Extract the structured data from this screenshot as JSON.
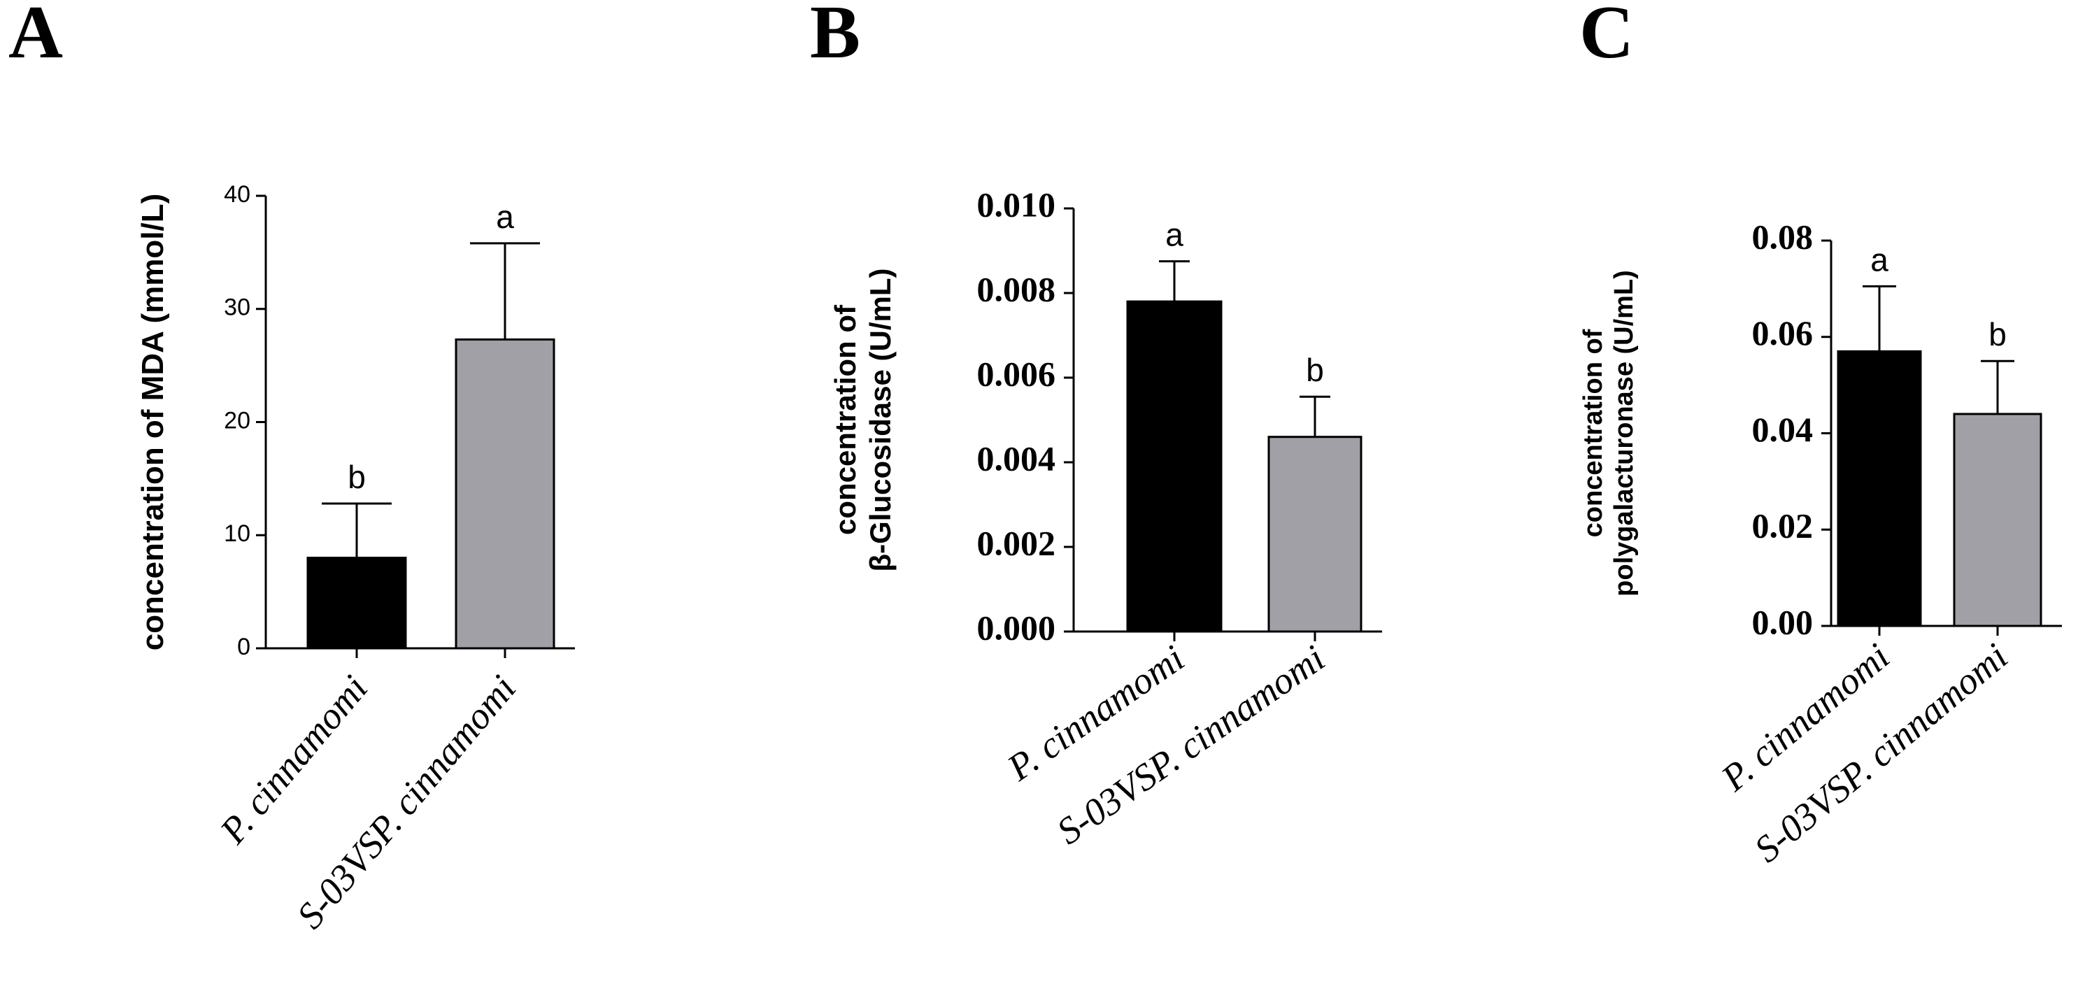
{
  "chart_data": [
    {
      "panel_label": "A",
      "type": "bar",
      "ylabel": "concentration of MDA (mmol/L)",
      "ylim": [
        0,
        40
      ],
      "ytick_labels": [
        "0",
        "10",
        "20",
        "30",
        "40"
      ],
      "ytick_values": [
        0,
        10,
        20,
        30,
        40
      ],
      "categories": [
        "P. cinnamomi",
        "S-03VSP. cinnamomi"
      ],
      "values": [
        8.0,
        27.3
      ],
      "errors": [
        4.8,
        8.5
      ],
      "significance": [
        "b",
        "a"
      ],
      "colors": [
        "#000000",
        "#a0a0a6"
      ]
    },
    {
      "panel_label": "B",
      "type": "bar",
      "ylabel": "concentration of β-Glucosidase (U/mL)",
      "ylabel_lines": [
        "concentration of",
        "β-Glucosidase (U/mL)"
      ],
      "ylim": [
        0,
        0.01
      ],
      "ytick_labels": [
        "0.000",
        "0.002",
        "0.004",
        "0.006",
        "0.008",
        "0.010"
      ],
      "ytick_values": [
        0,
        0.002,
        0.004,
        0.006,
        0.008,
        0.01
      ],
      "categories": [
        "P. cinnamomi",
        "S-03VSP. cinnamomi"
      ],
      "values": [
        0.0078,
        0.0046
      ],
      "errors": [
        0.00095,
        0.00095
      ],
      "significance": [
        "a",
        "b"
      ],
      "colors": [
        "#000000",
        "#a0a0a6"
      ]
    },
    {
      "panel_label": "C",
      "type": "bar",
      "ylabel": "concentration of polygalacturonase (U/mL)",
      "ylabel_lines": [
        "concentration of",
        "polygalacturonase (U/mL)"
      ],
      "ylim": [
        0,
        0.08
      ],
      "ytick_labels": [
        "0.00",
        "0.02",
        "0.04",
        "0.06",
        "0.08"
      ],
      "ytick_values": [
        0,
        0.02,
        0.04,
        0.06,
        0.08
      ],
      "categories": [
        "P. cinnamomi",
        "S-03VSP. cinnamomi"
      ],
      "values": [
        0.057,
        0.044
      ],
      "errors": [
        0.0135,
        0.011
      ],
      "significance": [
        "a",
        "b"
      ],
      "colors": [
        "#000000",
        "#a0a0a6"
      ]
    }
  ]
}
